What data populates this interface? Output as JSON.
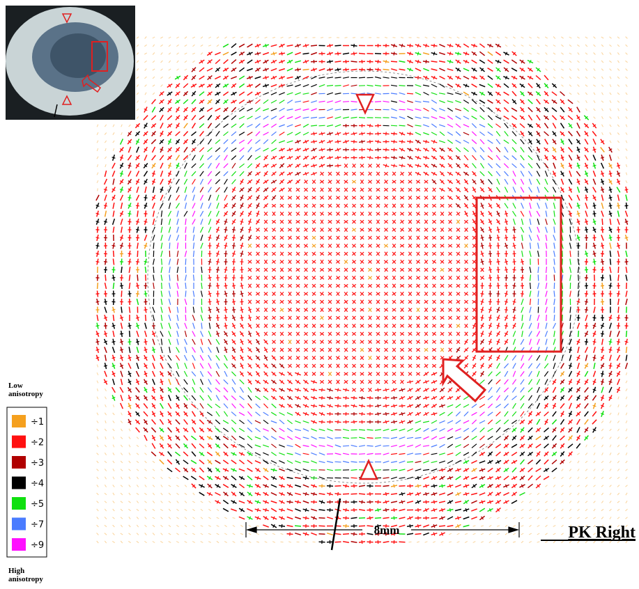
{
  "legend": {
    "top_label": "Low anisotropy",
    "bottom_label": "High anisotropy",
    "items": [
      {
        "label": "÷1",
        "color": "#f5a01e"
      },
      {
        "label": "÷2",
        "color": "#ff1010"
      },
      {
        "label": "÷3",
        "color": "#b00000"
      },
      {
        "label": "÷4",
        "color": "#000000"
      },
      {
        "label": "÷5",
        "color": "#10e010"
      },
      {
        "label": "÷7",
        "color": "#4a7cff"
      },
      {
        "label": "÷9",
        "color": "#ff10ff"
      }
    ]
  },
  "scale_bar": {
    "label": "8mm"
  },
  "panel_label": "PK Right"
}
